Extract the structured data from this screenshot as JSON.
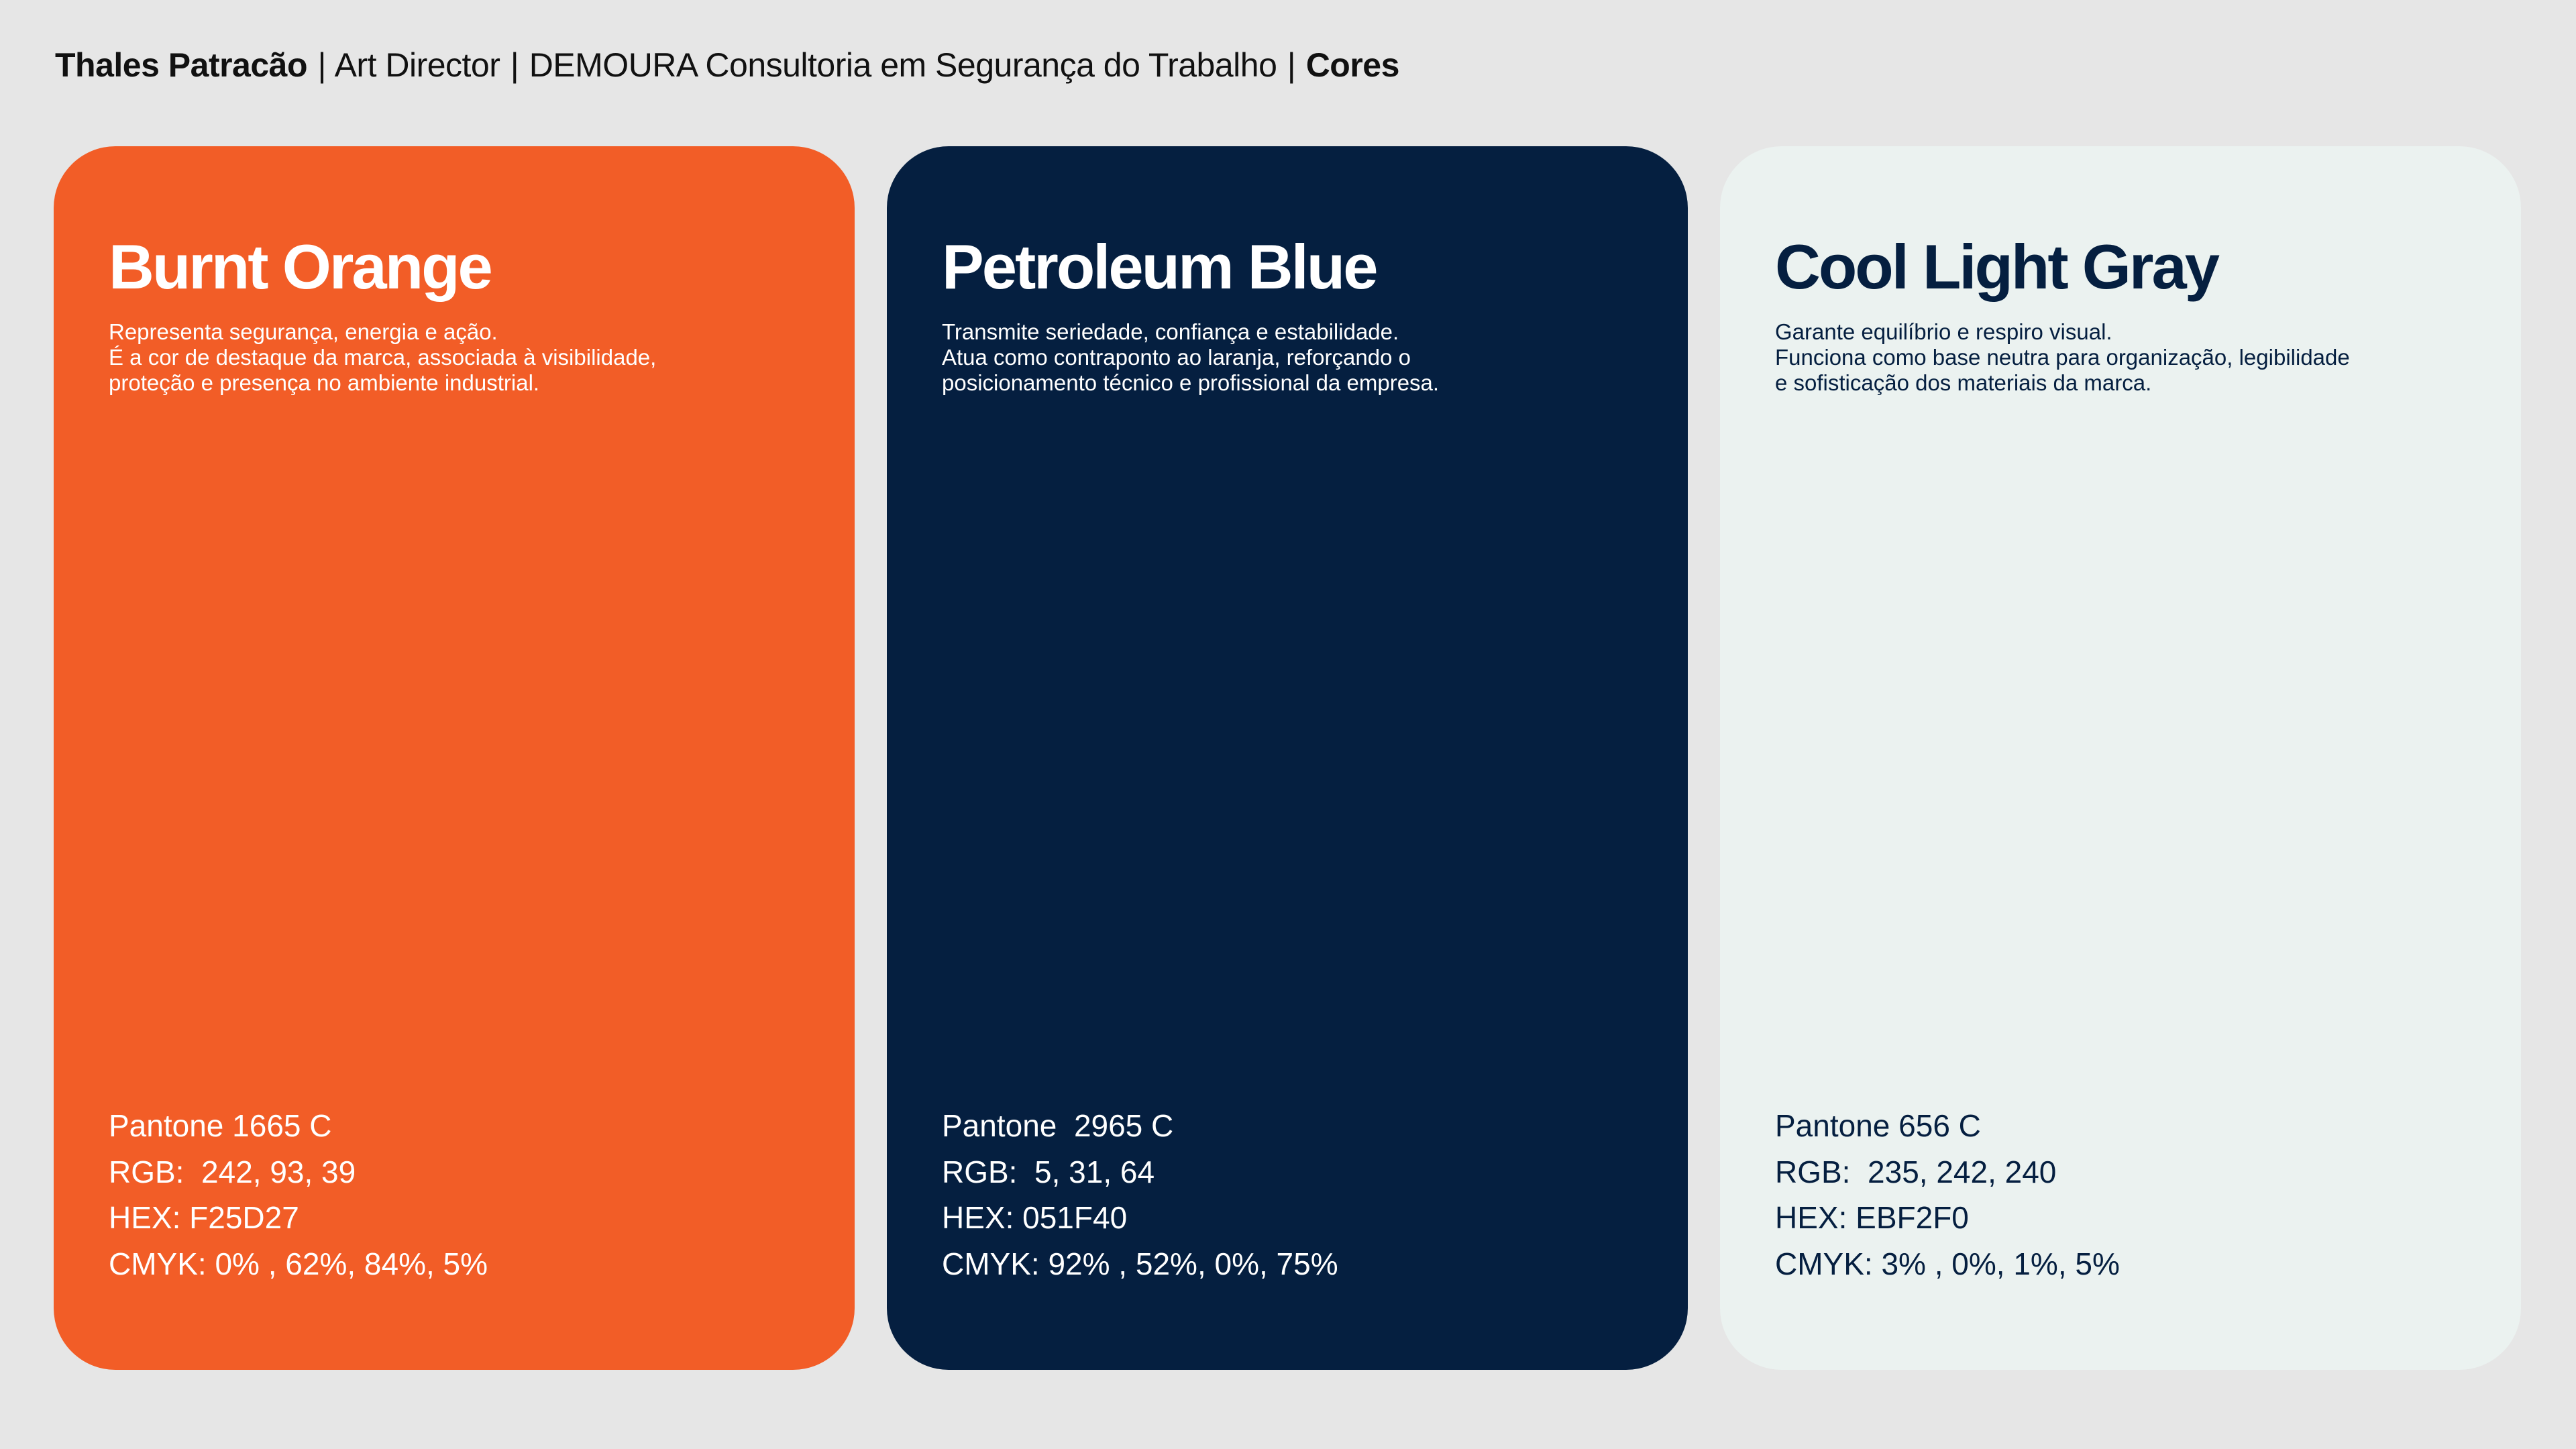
{
  "header": {
    "author": "Thales Patracão",
    "role": "Art Director",
    "client": "DEMOURA  Consultoria em Segurança do Trabalho",
    "section": "Cores",
    "separator": "|"
  },
  "colors": [
    {
      "name": "Burnt Orange",
      "description": [
        "Representa segurança, energia e ação.",
        "É a cor de destaque da marca, associada à visibilidade,",
        "proteção e presença no ambiente industrial."
      ],
      "pantone": "Pantone 1665 C",
      "rgb": "RGB:  242, 93, 39",
      "hex": "HEX: F25D27",
      "cmyk": "CMYK: 0% , 62%, 84%, 5%",
      "background": "#F25D27",
      "text_color": "#FFFFFF"
    },
    {
      "name": "Petroleum Blue",
      "description": [
        "Transmite seriedade, confiança e estabilidade.",
        "Atua como contraponto ao laranja, reforçando o",
        "posicionamento técnico e profissional da empresa."
      ],
      "pantone": "Pantone  2965 C",
      "rgb": "RGB:  5, 31, 64",
      "hex": "HEX: 051F40",
      "cmyk": "CMYK: 92% , 52%, 0%, 75%",
      "background": "#051F40",
      "text_color": "#FFFFFF"
    },
    {
      "name": "Cool Light Gray",
      "description": [
        "Garante equilíbrio e respiro visual.",
        "Funciona como base neutra para organização, legibilidade",
        "e sofisticação dos materiais da marca."
      ],
      "pantone": "Pantone 656 C",
      "rgb": "RGB:  235, 242, 240",
      "hex": "HEX: EBF2F0",
      "cmyk": "CMYK: 3% , 0%, 1%, 5%",
      "background": "#EBF2F0",
      "text_color": "#051F40"
    }
  ]
}
